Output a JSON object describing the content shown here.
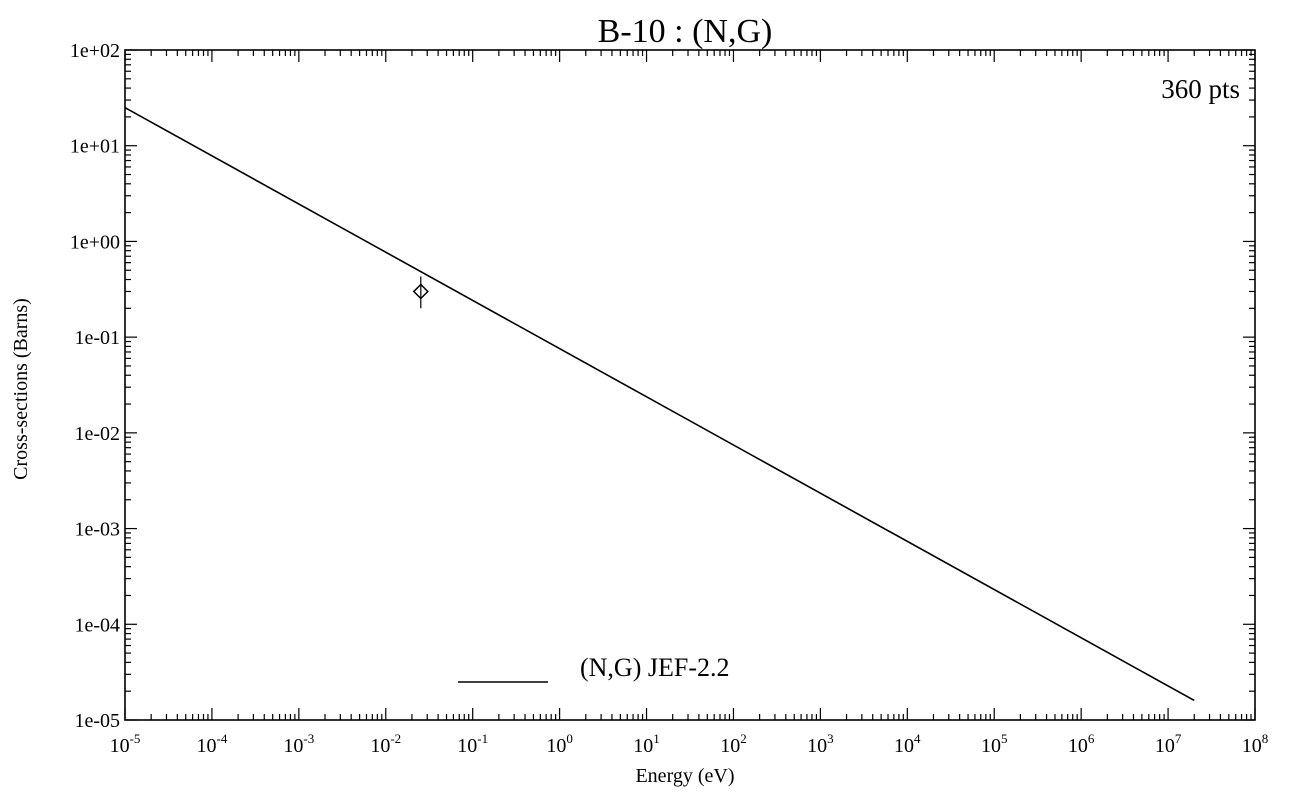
{
  "chart_data": {
    "type": "line",
    "title": "B-10  : (N,G)",
    "annotation": "360 pts",
    "xlabel": "Energy (eV)",
    "ylabel": "Cross-sections (Barns)",
    "x_scale": "log",
    "y_scale": "log",
    "xlim": [
      1e-05,
      100000000.0
    ],
    "ylim": [
      1e-05,
      100.0
    ],
    "x_tick_labels": [
      {
        "base": "10",
        "exp": "-5"
      },
      {
        "base": "10",
        "exp": "-4"
      },
      {
        "base": "10",
        "exp": "-3"
      },
      {
        "base": "10",
        "exp": "-2"
      },
      {
        "base": "10",
        "exp": "-1"
      },
      {
        "base": "10",
        "exp": "0"
      },
      {
        "base": "10",
        "exp": "1"
      },
      {
        "base": "10",
        "exp": "2"
      },
      {
        "base": "10",
        "exp": "3"
      },
      {
        "base": "10",
        "exp": "4"
      },
      {
        "base": "10",
        "exp": "5"
      },
      {
        "base": "10",
        "exp": "6"
      },
      {
        "base": "10",
        "exp": "7"
      },
      {
        "base": "10",
        "exp": "8"
      }
    ],
    "y_tick_labels": [
      "1e+02",
      "1e+01",
      "1e+00",
      "1e-01",
      "1e-02",
      "1e-03",
      "1e-04",
      "1e-05"
    ],
    "grid": false,
    "legend_position": "bottom-center",
    "series": [
      {
        "name": "(N,G) JEF-2.2",
        "style": "line",
        "color": "#000000",
        "points": [
          [
            1e-05,
            25
          ],
          [
            20000000.0,
            1.6e-05
          ]
        ]
      }
    ],
    "measurements": [
      {
        "x": 0.0253,
        "y": 0.3,
        "y_err_low": 0.2,
        "y_err_high": 0.43,
        "marker": "diamond"
      }
    ]
  }
}
